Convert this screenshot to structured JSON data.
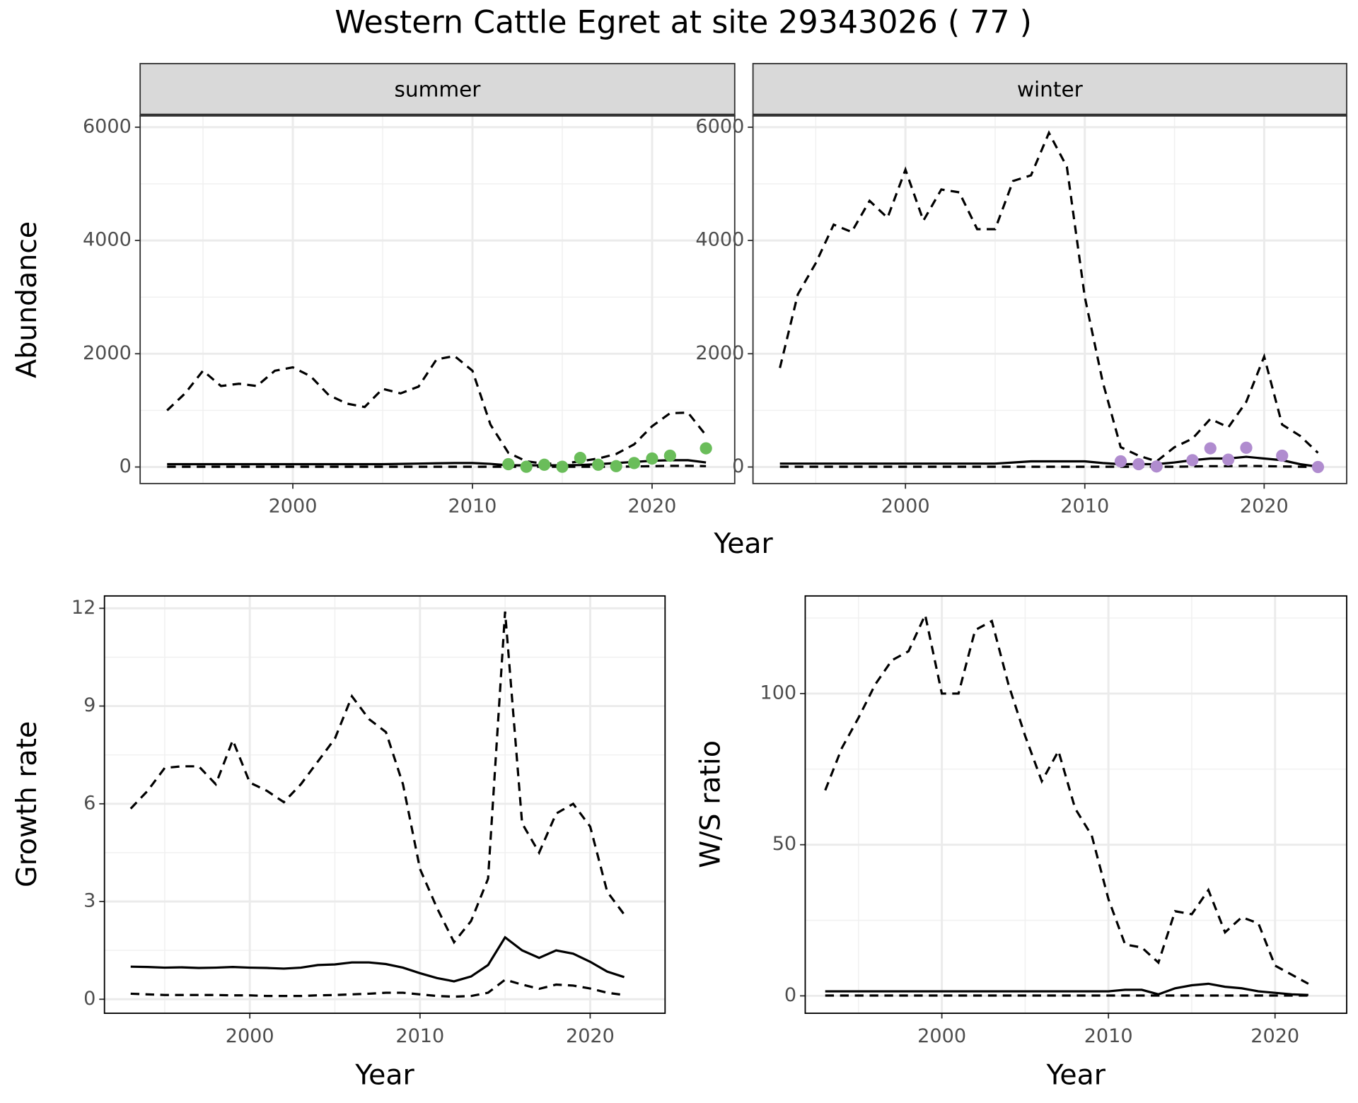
{
  "title": "Western Cattle Egret at site 29343026 ( 77 )",
  "chart_data": [
    {
      "type": "line",
      "strip": "summer",
      "xlabel": "Year",
      "ylabel": "Abundance",
      "xlim": [
        1991.5,
        2024.6
      ],
      "ylim": [
        -292,
        6200
      ],
      "xticks": [
        2000,
        2010,
        2020
      ],
      "yticks": [
        0,
        2000,
        4000,
        6000
      ],
      "xminor": [
        1995,
        2005,
        2015
      ],
      "yminor": [
        1000,
        3000,
        5000
      ],
      "grid": true,
      "x": [
        1993,
        1994,
        1995,
        1996,
        1997,
        1998,
        1999,
        2000,
        2001,
        2002,
        2003,
        2004,
        2005,
        2006,
        2007,
        2008,
        2009,
        2010,
        2011,
        2012,
        2013,
        2014,
        2015,
        2016,
        2017,
        2018,
        2019,
        2020,
        2021,
        2022,
        2023
      ],
      "series": [
        {
          "style": "dashed",
          "color": "#000000",
          "values": [
            1000,
            1300,
            1700,
            1430,
            1470,
            1430,
            1700,
            1760,
            1600,
            1270,
            1120,
            1060,
            1380,
            1300,
            1420,
            1900,
            1960,
            1700,
            750,
            250,
            100,
            60,
            60,
            100,
            150,
            230,
            400,
            720,
            950,
            960,
            560
          ]
        },
        {
          "style": "solid",
          "color": "#000000",
          "values": [
            50,
            50,
            50,
            50,
            50,
            50,
            50,
            50,
            50,
            50,
            50,
            50,
            50,
            55,
            60,
            65,
            70,
            70,
            55,
            30,
            30,
            30,
            30,
            35,
            50,
            70,
            90,
            110,
            120,
            120,
            80
          ]
        },
        {
          "style": "dashed",
          "color": "#000000",
          "values": [
            5,
            5,
            5,
            5,
            5,
            5,
            5,
            5,
            5,
            5,
            5,
            5,
            5,
            5,
            5,
            5,
            5,
            5,
            5,
            5,
            5,
            5,
            5,
            5,
            5,
            5,
            10,
            15,
            20,
            20,
            15
          ]
        },
        {
          "style": "points",
          "color": "#6abd5a",
          "x": [
            2012,
            2013,
            2014,
            2015,
            2016,
            2017,
            2018,
            2019,
            2020,
            2021,
            2023
          ],
          "values": [
            50,
            5,
            40,
            5,
            160,
            40,
            15,
            70,
            150,
            200,
            330
          ]
        }
      ]
    },
    {
      "type": "line",
      "strip": "winter",
      "xlim": [
        1991.5,
        2024.6
      ],
      "ylim": [
        -292,
        6200
      ],
      "xticks": [
        2000,
        2010,
        2020
      ],
      "yticks": [
        0,
        2000,
        4000,
        6000
      ],
      "xminor": [
        1995,
        2005,
        2015
      ],
      "yminor": [
        1000,
        3000,
        5000
      ],
      "grid": true,
      "x": [
        1993,
        1994,
        1995,
        1996,
        1997,
        1998,
        1999,
        2000,
        2001,
        2002,
        2003,
        2004,
        2005,
        2006,
        2007,
        2008,
        2009,
        2010,
        2011,
        2012,
        2013,
        2014,
        2015,
        2016,
        2017,
        2018,
        2019,
        2020,
        2021,
        2022,
        2023
      ],
      "series": [
        {
          "style": "dashed",
          "color": "#000000",
          "values": [
            1750,
            3050,
            3600,
            4280,
            4150,
            4700,
            4400,
            5250,
            4350,
            4900,
            4850,
            4200,
            4200,
            5050,
            5150,
            5900,
            5300,
            3000,
            1500,
            350,
            200,
            100,
            350,
            500,
            850,
            700,
            1150,
            1950,
            750,
            550,
            250
          ]
        },
        {
          "style": "solid",
          "color": "#000000",
          "values": [
            60,
            60,
            60,
            60,
            60,
            60,
            60,
            60,
            60,
            60,
            60,
            60,
            60,
            80,
            100,
            100,
            100,
            100,
            70,
            50,
            50,
            50,
            80,
            120,
            150,
            150,
            180,
            150,
            120,
            50,
            5
          ]
        },
        {
          "style": "dashed",
          "color": "#000000",
          "values": [
            5,
            5,
            5,
            5,
            5,
            5,
            5,
            5,
            5,
            5,
            5,
            5,
            5,
            5,
            5,
            5,
            5,
            5,
            5,
            5,
            5,
            5,
            5,
            10,
            15,
            15,
            20,
            15,
            10,
            5,
            0
          ]
        },
        {
          "style": "points",
          "color": "#b08ccf",
          "x": [
            2012,
            2013,
            2014,
            2016,
            2017,
            2018,
            2019,
            2021,
            2023
          ],
          "values": [
            100,
            50,
            10,
            120,
            330,
            130,
            340,
            200,
            0
          ]
        }
      ]
    },
    {
      "type": "line",
      "xlabel": "Year",
      "ylabel": "Growth rate",
      "xlim": [
        1991.46,
        2024.4
      ],
      "ylim": [
        -0.43,
        12.38
      ],
      "xticks": [
        2000,
        2010,
        2020
      ],
      "yticks": [
        0,
        3,
        6,
        9,
        12
      ],
      "xminor": [
        1995,
        2005,
        2015
      ],
      "yminor": [
        1.5,
        4.5,
        7.5,
        10.5
      ],
      "grid": true,
      "x": [
        1993,
        1994,
        1995,
        1996,
        1997,
        1998,
        1999,
        2000,
        2001,
        2002,
        2003,
        2004,
        2005,
        2006,
        2007,
        2008,
        2009,
        2010,
        2011,
        2012,
        2013,
        2014,
        2015,
        2016,
        2017,
        2018,
        2019,
        2020,
        2021,
        2022
      ],
      "series": [
        {
          "style": "dashed",
          "color": "#000000",
          "values": [
            5.85,
            6.4,
            7.1,
            7.15,
            7.15,
            6.6,
            7.95,
            6.65,
            6.4,
            6.05,
            6.6,
            7.3,
            8.0,
            9.3,
            8.6,
            8.2,
            6.6,
            4.0,
            2.8,
            1.75,
            2.4,
            3.7,
            11.9,
            5.4,
            4.5,
            5.7,
            6.0,
            5.3,
            3.3,
            2.6
          ]
        },
        {
          "style": "solid",
          "color": "#000000",
          "values": [
            1.0,
            0.99,
            0.97,
            0.98,
            0.96,
            0.97,
            0.99,
            0.97,
            0.96,
            0.94,
            0.97,
            1.05,
            1.07,
            1.13,
            1.13,
            1.08,
            0.97,
            0.8,
            0.65,
            0.55,
            0.7,
            1.05,
            1.9,
            1.5,
            1.27,
            1.5,
            1.4,
            1.15,
            0.85,
            0.68
          ]
        },
        {
          "style": "dashed",
          "color": "#000000",
          "values": [
            0.17,
            0.15,
            0.13,
            0.13,
            0.13,
            0.13,
            0.12,
            0.12,
            0.1,
            0.1,
            0.1,
            0.12,
            0.13,
            0.15,
            0.17,
            0.2,
            0.2,
            0.15,
            0.1,
            0.08,
            0.1,
            0.2,
            0.6,
            0.45,
            0.32,
            0.45,
            0.42,
            0.33,
            0.2,
            0.13
          ]
        }
      ]
    },
    {
      "type": "line",
      "xlabel": "Year",
      "ylabel": "W/S ratio",
      "xlim": [
        1991.8,
        2024.3
      ],
      "ylim": [
        -5.76,
        132.3
      ],
      "xticks": [
        2000,
        2010,
        2020
      ],
      "yticks": [
        0,
        50,
        100
      ],
      "xminor": [
        1995,
        2005,
        2015
      ],
      "yminor": [
        25,
        75,
        125
      ],
      "grid": true,
      "x": [
        1993,
        1994,
        1995,
        1996,
        1997,
        1998,
        1999,
        2000,
        2001,
        2002,
        2003,
        2004,
        2005,
        2006,
        2007,
        2008,
        2009,
        2010,
        2011,
        2012,
        2013,
        2014,
        2015,
        2016,
        2017,
        2018,
        2019,
        2020,
        2021,
        2022
      ],
      "series": [
        {
          "style": "dashed",
          "color": "#000000",
          "values": [
            68,
            82,
            92,
            103,
            111,
            114,
            126,
            100,
            100,
            121,
            124,
            103,
            86,
            71,
            81,
            62,
            53,
            32,
            17,
            16,
            11,
            28,
            27,
            35,
            21,
            26,
            24,
            10,
            7,
            4
          ]
        },
        {
          "style": "solid",
          "color": "#000000",
          "values": [
            1.5,
            1.5,
            1.5,
            1.5,
            1.5,
            1.5,
            1.5,
            1.5,
            1.5,
            1.5,
            1.5,
            1.5,
            1.5,
            1.5,
            1.5,
            1.5,
            1.5,
            1.5,
            2,
            2,
            0.5,
            2.5,
            3.5,
            4,
            3,
            2.5,
            1.5,
            1,
            0.5,
            0.3
          ]
        },
        {
          "style": "dashed",
          "color": "#000000",
          "values": [
            0.1,
            0.1,
            0.1,
            0.1,
            0.1,
            0.1,
            0.1,
            0.1,
            0.1,
            0.1,
            0.1,
            0.1,
            0.1,
            0.1,
            0.1,
            0.1,
            0.1,
            0.1,
            0.1,
            0.1,
            0.1,
            0.1,
            0.1,
            0.1,
            0.1,
            0.1,
            0.1,
            0.1,
            0.1,
            0.1
          ]
        }
      ]
    }
  ]
}
